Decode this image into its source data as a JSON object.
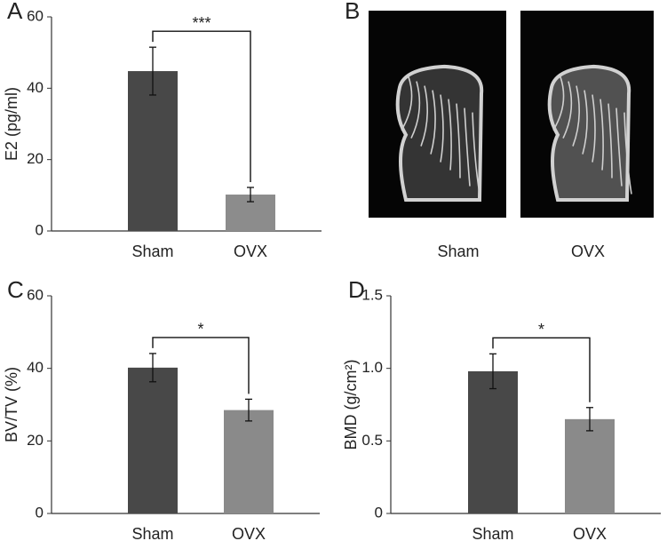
{
  "chart_data": [
    {
      "type": "bar",
      "panel": "A",
      "ylabel": "E2 (pg/ml)",
      "categories": [
        "Sham",
        "OVX"
      ],
      "values": [
        44.8,
        10.2
      ],
      "errors": [
        6.7,
        2
      ],
      "colors": [
        "#484848",
        "#8c8c8c"
      ],
      "ylim": [
        0,
        60
      ],
      "yticks": [
        0,
        20,
        40,
        60
      ],
      "significance": "***"
    },
    {
      "type": "image",
      "panel": "B",
      "categories": [
        "Sham",
        "OVX"
      ]
    },
    {
      "type": "bar",
      "panel": "C",
      "ylabel": "BV/TV (%)",
      "categories": [
        "Sham",
        "OVX"
      ],
      "values": [
        40.2,
        28.5
      ],
      "errors": [
        3.9,
        3
      ],
      "colors": [
        "#484848",
        "#8a8a8a"
      ],
      "ylim": [
        0,
        60
      ],
      "yticks": [
        0,
        20,
        40,
        60
      ],
      "significance": "*"
    },
    {
      "type": "bar",
      "panel": "D",
      "ylabel": "BMD (g/cm²)",
      "categories": [
        "Sham",
        "OVX"
      ],
      "values": [
        0.98,
        0.65
      ],
      "errors": [
        0.12,
        0.08
      ],
      "colors": [
        "#484848",
        "#8a8a8a"
      ],
      "ylim": [
        0,
        1.5
      ],
      "yticks": [
        0,
        0.5,
        {
          "value": 1.0,
          "label": "1.0"
        },
        1.5
      ],
      "significance": "*"
    }
  ]
}
